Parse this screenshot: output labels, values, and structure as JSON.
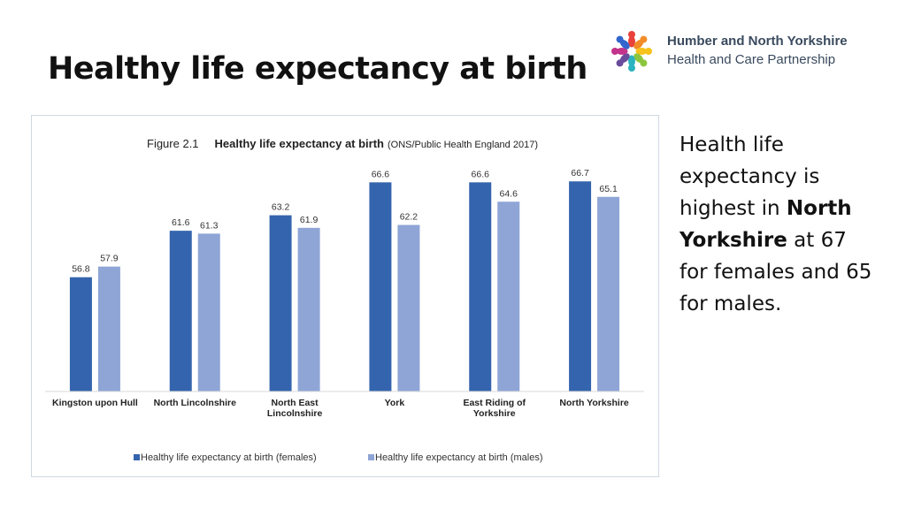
{
  "slide": {
    "title": "Healthy life expectancy at birth"
  },
  "logo": {
    "line1": "Humber and North Yorkshire",
    "line2": "Health and Care Partnership",
    "colors": [
      "#e8423b",
      "#f28c28",
      "#f6c21b",
      "#8cc63f",
      "#2bb3c0",
      "#6a4c9c",
      "#c2338b",
      "#3366cc"
    ]
  },
  "side_text": {
    "part1": "Health life expectancy is highest in ",
    "bold": "North Yorkshire",
    "part2": " at 67 for females and 65 for males."
  },
  "chart_data": {
    "type": "bar",
    "figure_label": "Figure 2.1",
    "title": "Healthy life expectancy at birth",
    "subtitle": "(ONS/Public Health England 2017)",
    "categories": [
      [
        "Kingston upon Hull"
      ],
      [
        "North Lincolnshire"
      ],
      [
        "North East",
        "Lincolnshire"
      ],
      [
        "York"
      ],
      [
        "East Riding of",
        "Yorkshire"
      ],
      [
        "North Yorkshire"
      ]
    ],
    "series": [
      {
        "name": "Healthy life expectancy at birth (females)",
        "color": "#3464ad",
        "values": [
          56.8,
          61.6,
          63.2,
          66.6,
          66.6,
          66.7
        ]
      },
      {
        "name": "Healthy life expectancy at birth (males)",
        "color": "#8ea5d6",
        "values": [
          57.9,
          61.3,
          61.9,
          62.2,
          64.6,
          65.1
        ]
      }
    ],
    "ylim": [
      45,
      68
    ],
    "grid": false,
    "legend_position": "bottom"
  }
}
